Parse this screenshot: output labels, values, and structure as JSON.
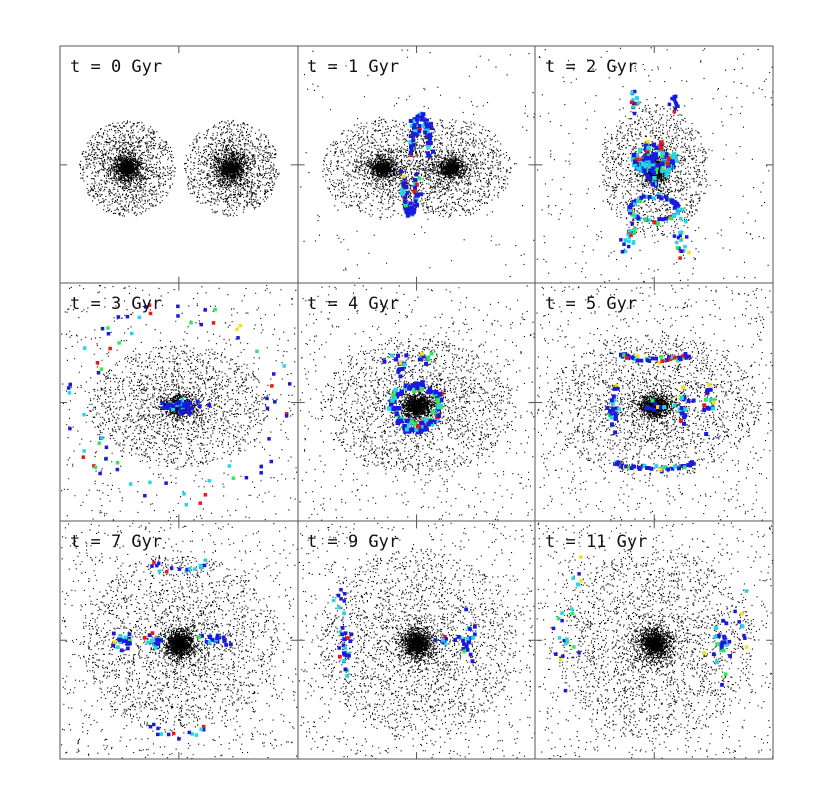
{
  "figure": {
    "grid": {
      "rows": 3,
      "cols": 3
    },
    "colors": {
      "stars": "#000000",
      "frame": "#555555",
      "tracer_blue": "#1a1adc",
      "tracer_cyan": "#22d6e8",
      "tracer_green": "#2ee860",
      "tracer_yellow": "#f0e020",
      "tracer_red": "#e81818"
    },
    "panels": [
      {
        "id": "p0",
        "label": "t = 0 Gyr",
        "stage": "two-separated-galaxies"
      },
      {
        "id": "p1",
        "label": "t = 1 Gyr",
        "stage": "first-approach"
      },
      {
        "id": "p2",
        "label": "t = 2 Gyr",
        "stage": "first-passage"
      },
      {
        "id": "p3",
        "label": "t = 3 Gyr",
        "stage": "merged-halo-scatter"
      },
      {
        "id": "p4",
        "label": "t = 4 Gyr",
        "stage": "central-ring"
      },
      {
        "id": "p5",
        "label": "t = 5 Gyr",
        "stage": "shells"
      },
      {
        "id": "p6",
        "label": "t = 7 Gyr",
        "stage": "relaxing"
      },
      {
        "id": "p7",
        "label": "t = 9 Gyr",
        "stage": "relaxed"
      },
      {
        "id": "p8",
        "label": "t = 11 Gyr",
        "stage": "remnant"
      }
    ]
  }
}
